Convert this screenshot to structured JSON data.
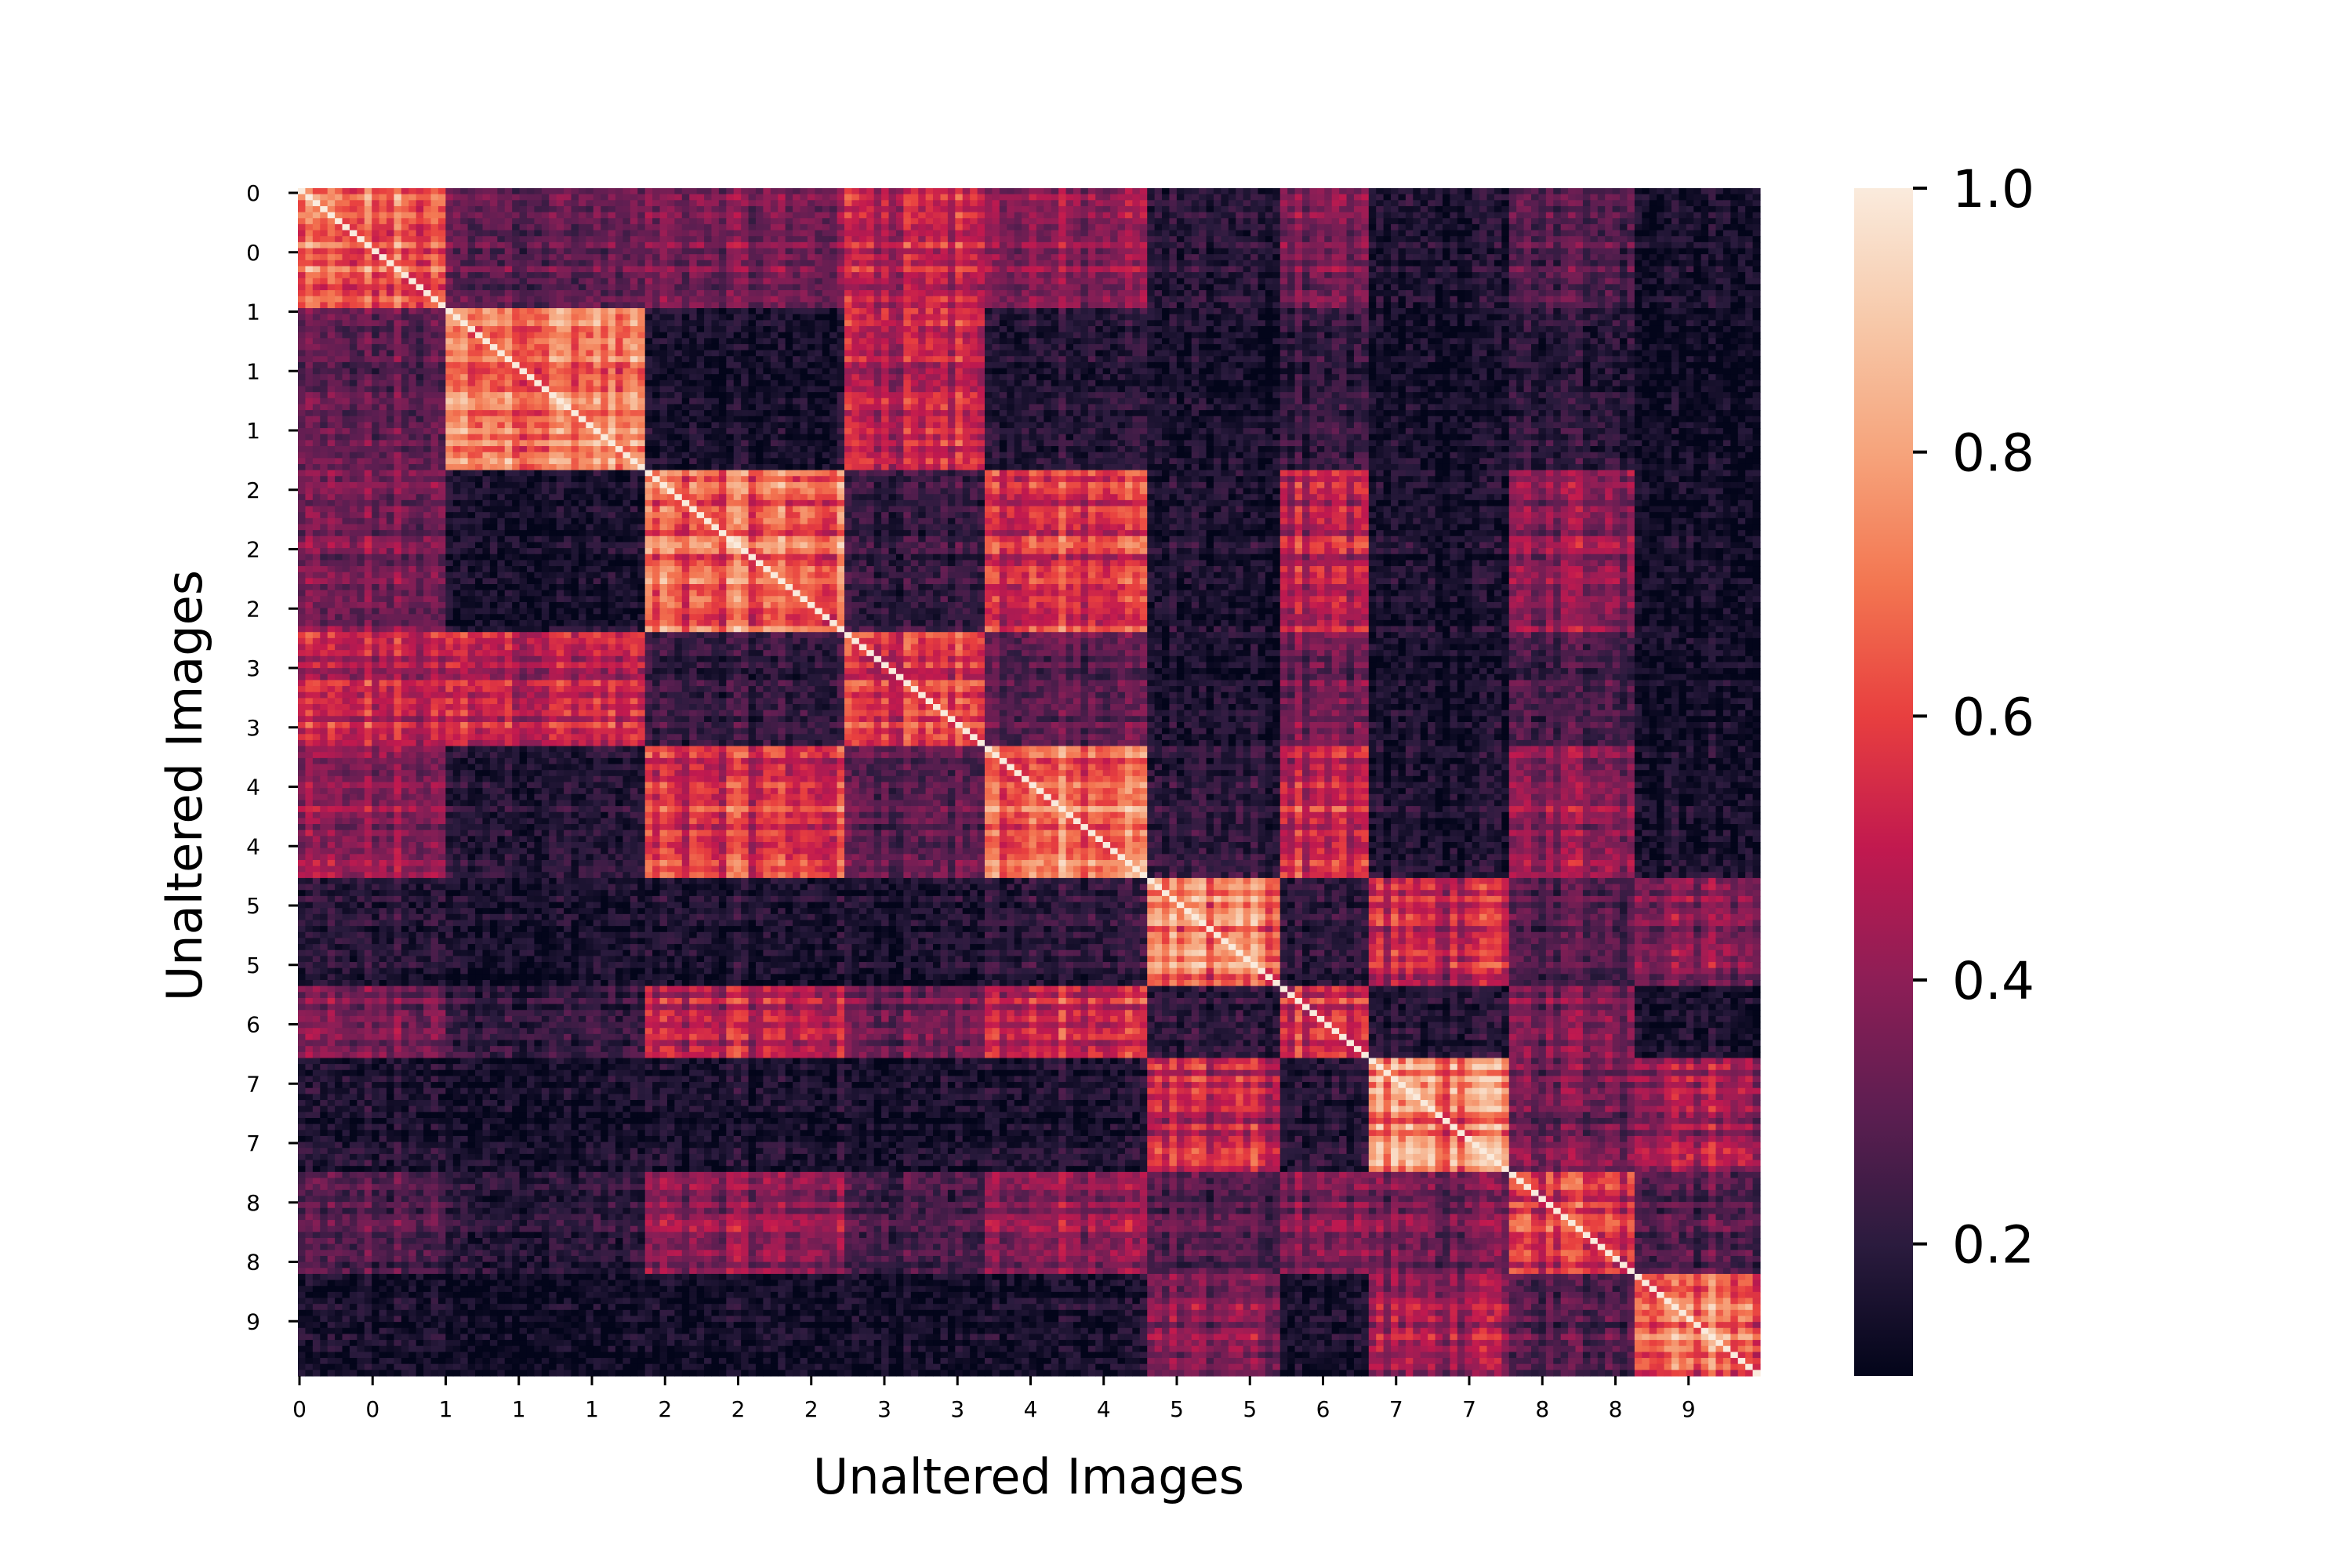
{
  "chart_data": {
    "type": "heatmap",
    "title": "",
    "xlabel": "Unaltered Images",
    "ylabel": "Unaltered Images",
    "x_tick_labels": [
      "0",
      "0",
      "1",
      "1",
      "1",
      "2",
      "2",
      "2",
      "3",
      "3",
      "4",
      "4",
      "5",
      "5",
      "6",
      "7",
      "7",
      "8",
      "8",
      "9"
    ],
    "y_tick_labels": [
      "0",
      "0",
      "1",
      "1",
      "1",
      "2",
      "2",
      "2",
      "3",
      "3",
      "4",
      "4",
      "5",
      "5",
      "6",
      "7",
      "7",
      "8",
      "8",
      "9"
    ],
    "cluster_order": [
      0,
      1,
      2,
      3,
      4,
      5,
      6,
      7,
      8,
      9
    ],
    "cluster_sizes": [
      20,
      27,
      27,
      19,
      22,
      18,
      12,
      19,
      17,
      17
    ],
    "diagonal_value": 1.0,
    "block_means": [
      [
        0.62,
        0.3,
        0.34,
        0.5,
        0.38,
        0.18,
        0.36,
        0.16,
        0.28,
        0.16
      ],
      [
        0.3,
        0.72,
        0.15,
        0.52,
        0.18,
        0.15,
        0.22,
        0.14,
        0.2,
        0.13
      ],
      [
        0.34,
        0.15,
        0.66,
        0.22,
        0.55,
        0.16,
        0.5,
        0.15,
        0.4,
        0.15
      ],
      [
        0.5,
        0.52,
        0.22,
        0.6,
        0.3,
        0.16,
        0.35,
        0.15,
        0.26,
        0.15
      ],
      [
        0.38,
        0.18,
        0.55,
        0.3,
        0.66,
        0.2,
        0.52,
        0.16,
        0.4,
        0.16
      ],
      [
        0.18,
        0.15,
        0.16,
        0.16,
        0.2,
        0.72,
        0.2,
        0.5,
        0.28,
        0.4
      ],
      [
        0.36,
        0.22,
        0.5,
        0.35,
        0.52,
        0.2,
        0.55,
        0.18,
        0.38,
        0.16
      ],
      [
        0.16,
        0.14,
        0.15,
        0.15,
        0.16,
        0.5,
        0.18,
        0.72,
        0.34,
        0.46
      ],
      [
        0.28,
        0.2,
        0.4,
        0.26,
        0.4,
        0.28,
        0.38,
        0.34,
        0.58,
        0.3
      ],
      [
        0.16,
        0.13,
        0.15,
        0.15,
        0.16,
        0.4,
        0.16,
        0.46,
        0.3,
        0.78
      ]
    ],
    "colorbar": {
      "colormap": "rocket",
      "vmin": 0.1,
      "vmax": 1.0,
      "ticks": [
        "1.0",
        "0.8",
        "0.6",
        "0.4",
        "0.2"
      ],
      "tick_values": [
        1.0,
        0.8,
        0.6,
        0.4,
        0.2
      ],
      "colors": [
        "#03051a",
        "#2b1b3e",
        "#5c1e51",
        "#8d1e56",
        "#c1194f",
        "#e83f3f",
        "#f37651",
        "#f6a47c",
        "#f7c9aa",
        "#faebdd"
      ]
    }
  }
}
